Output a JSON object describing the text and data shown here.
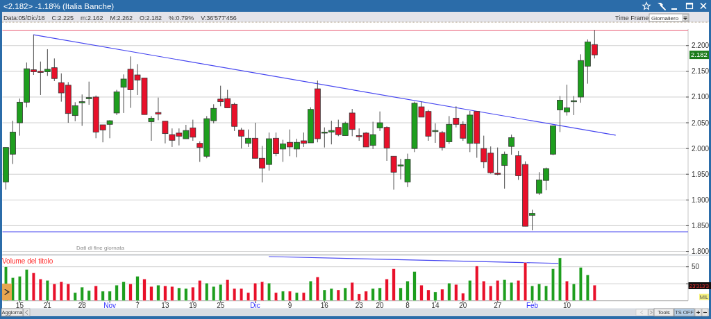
{
  "chart_data": [
    {
      "type": "candlestick",
      "title": "<2.182> -1.18% (Italia Banche)",
      "annotations": [
        "Data:05/Dic/18",
        "C:2.225",
        "m:2.162",
        "M:2.262",
        "O:2.182",
        "%:0.79%",
        "V:36'577'456",
        "Dati di fine giornata",
        "Time Frame",
        "Giornaliero",
        {
          "text": "2.182",
          "y": 2.182
        }
      ],
      "categories": [
        null,
        null,
        null,
        null,
        null,
        null,
        null,
        null,
        null,
        null,
        null,
        null,
        null,
        null,
        null,
        null,
        null,
        null,
        null,
        null,
        null,
        null,
        null,
        null,
        null,
        null,
        null,
        null,
        null,
        null,
        null,
        null,
        null,
        null,
        null,
        null,
        null,
        null,
        null,
        null,
        null,
        null,
        null,
        null,
        null,
        null,
        null,
        null,
        null,
        null,
        null,
        null,
        null,
        null,
        null,
        null,
        null,
        null,
        null,
        null,
        null,
        null,
        null,
        null,
        null,
        null,
        null,
        null,
        null,
        null,
        null,
        null,
        null,
        null,
        null,
        null,
        null,
        null,
        null,
        null,
        null,
        null,
        null,
        null,
        null,
        null,
        null,
        null,
        null,
        null,
        null,
        null,
        null,
        null,
        null,
        null,
        null,
        null,
        null
      ],
      "ohlc": [
        [
          1.935,
          2.002,
          1.92,
          2.002
        ],
        [
          1.989,
          2.054,
          1.97,
          2.032
        ],
        [
          2.05,
          2.097,
          2.025,
          2.09
        ],
        [
          2.09,
          2.167,
          2.08,
          2.155
        ],
        [
          2.153,
          2.221,
          2.143,
          2.149
        ],
        [
          2.15,
          2.169,
          2.104,
          2.148
        ],
        [
          2.149,
          2.193,
          2.141,
          2.154
        ],
        [
          2.157,
          2.175,
          2.131,
          2.136
        ],
        [
          2.128,
          2.146,
          2.091,
          2.108
        ],
        [
          2.123,
          2.129,
          2.05,
          2.068
        ],
        [
          2.064,
          2.09,
          2.053,
          2.083
        ],
        [
          2.09,
          2.105,
          2.044,
          2.091
        ],
        [
          2.097,
          2.13,
          2.085,
          2.099
        ],
        [
          2.1,
          2.103,
          2.02,
          2.032
        ],
        [
          2.046,
          2.046,
          2.012,
          2.036
        ],
        [
          2.047,
          2.055,
          2.02,
          2.054
        ],
        [
          2.069,
          2.114,
          2.065,
          2.11
        ],
        [
          2.119,
          2.144,
          2.069,
          2.135
        ],
        [
          2.154,
          2.179,
          2.079,
          2.114
        ],
        [
          2.143,
          2.164,
          2.104,
          2.133
        ],
        [
          2.137,
          2.137,
          2.066,
          2.066
        ],
        [
          2.052,
          2.063,
          2.015,
          2.059
        ],
        [
          2.07,
          2.099,
          2.055,
          2.067
        ],
        [
          2.053,
          2.053,
          2.01,
          2.029
        ],
        [
          2.027,
          2.039,
          2.003,
          2.016
        ],
        [
          2.03,
          2.039,
          2.006,
          2.024
        ],
        [
          2.019,
          2.046,
          2.019,
          2.035
        ],
        [
          2.04,
          2.056,
          2.015,
          2.022
        ],
        [
          2.01,
          2.014,
          1.974,
          2.002
        ],
        [
          1.985,
          2.063,
          1.981,
          2.058
        ],
        [
          2.054,
          2.086,
          2.049,
          2.078
        ],
        [
          2.096,
          2.122,
          2.082,
          2.091
        ],
        [
          2.097,
          2.114,
          2.079,
          2.079
        ],
        [
          2.086,
          2.089,
          2.034,
          2.043
        ],
        [
          2.036,
          2.04,
          2.0,
          2.024
        ],
        [
          2.01,
          2.037,
          2.003,
          2.02
        ],
        [
          2.02,
          2.05,
          1.981,
          1.981
        ],
        [
          1.981,
          2.005,
          1.934,
          1.962
        ],
        [
          1.969,
          2.031,
          1.957,
          2.019
        ],
        [
          2.02,
          2.031,
          1.985,
          1.99
        ],
        [
          1.999,
          2.017,
          1.974,
          2.009
        ],
        [
          2.012,
          2.037,
          1.985,
          2.003
        ],
        [
          1.999,
          2.019,
          1.983,
          2.012
        ],
        [
          2.015,
          2.031,
          2.003,
          2.01
        ],
        [
          2.011,
          2.08,
          2.011,
          2.076
        ],
        [
          2.116,
          2.132,
          2.012,
          2.019
        ],
        [
          2.03,
          2.041,
          2.002,
          2.032
        ],
        [
          2.032,
          2.054,
          2.008,
          2.035
        ],
        [
          2.041,
          2.056,
          2.024,
          2.027
        ],
        [
          2.025,
          2.052,
          2.025,
          2.049
        ],
        [
          2.069,
          2.077,
          2.024,
          2.037
        ],
        [
          2.025,
          2.039,
          2.015,
          2.024
        ],
        [
          2.03,
          2.032,
          2.003,
          2.003
        ],
        [
          2.006,
          2.052,
          1.999,
          2.027
        ],
        [
          2.04,
          2.072,
          2.034,
          2.05
        ],
        [
          2.041,
          2.043,
          1.976,
          2.001
        ],
        [
          1.985,
          1.985,
          1.92,
          1.954
        ],
        [
          1.967,
          1.98,
          1.94,
          1.968
        ],
        [
          1.935,
          1.99,
          1.925,
          1.979
        ],
        [
          2.0,
          2.091,
          1.993,
          2.088
        ],
        [
          2.081,
          2.091,
          2.061,
          2.061
        ],
        [
          2.072,
          2.075,
          2.015,
          2.024
        ],
        [
          2.033,
          2.049,
          2.011,
          2.035
        ],
        [
          2.031,
          2.034,
          1.996,
          2.002
        ],
        [
          2.013,
          2.063,
          2.009,
          2.047
        ],
        [
          2.059,
          2.082,
          2.041,
          2.047
        ],
        [
          2.047,
          2.053,
          2.015,
          2.02
        ],
        [
          2.01,
          2.073,
          1.993,
          2.065
        ],
        [
          2.072,
          2.072,
          1.982,
          2.01
        ],
        [
          2.0,
          2.025,
          1.962,
          1.974
        ],
        [
          1.991,
          2.004,
          1.951,
          1.953
        ],
        [
          1.952,
          2.002,
          1.948,
          1.95
        ],
        [
          1.967,
          1.994,
          1.922,
          1.989
        ],
        [
          2.004,
          2.027,
          1.988,
          2.021
        ],
        [
          1.986,
          1.995,
          1.939,
          1.947
        ],
        [
          1.969,
          1.975,
          1.849,
          1.849
        ],
        [
          1.87,
          1.881,
          1.841,
          1.874
        ],
        [
          1.913,
          1.954,
          1.91,
          1.939
        ],
        [
          1.938,
          1.963,
          1.919,
          1.961
        ],
        [
          1.989,
          2.044,
          1.987,
          2.044
        ],
        [
          2.075,
          2.102,
          2.032,
          2.094
        ],
        [
          2.071,
          2.124,
          2.064,
          2.079
        ],
        [
          2.091,
          2.102,
          2.065,
          2.093
        ],
        [
          2.1,
          2.183,
          2.089,
          2.171
        ],
        [
          2.16,
          2.212,
          2.126,
          2.207
        ],
        [
          2.202,
          2.23,
          2.175,
          2.182
        ],
        null,
        null,
        null,
        null,
        null,
        null,
        null,
        null,
        null,
        null,
        null,
        null,
        null
      ],
      "colors": [
        "#1e9e1e",
        "#1e9e1e",
        "#1e9e1e",
        "#1e9e1e",
        "#e8102a",
        "#e8102a",
        "#1e9e1e",
        "#e8102a",
        "#e8102a",
        "#e8102a",
        "#1e9e1e",
        "#1e9e1e",
        "#1e9e1e",
        "#e8102a",
        "#e8102a",
        "#1e9e1e",
        "#1e9e1e",
        "#1e9e1e",
        "#e8102a",
        "#e8102a",
        "#e8102a",
        "#1e9e1e",
        "#e8102a",
        "#e8102a",
        "#e8102a",
        "#e8102a",
        "#1e9e1e",
        "#e8102a",
        "#e8102a",
        "#1e9e1e",
        "#1e9e1e",
        "#e8102a",
        "#e8102a",
        "#e8102a",
        "#e8102a",
        "#1e9e1e",
        "#e8102a",
        "#e8102a",
        "#1e9e1e",
        "#e8102a",
        "#1e9e1e",
        "#e8102a",
        "#1e9e1e",
        "#e8102a",
        "#1e9e1e",
        "#e8102a",
        "#1e9e1e",
        "#1e9e1e",
        "#e8102a",
        "#1e9e1e",
        "#e8102a",
        "#e8102a",
        "#e8102a",
        "#1e9e1e",
        "#1e9e1e",
        "#e8102a",
        "#e8102a",
        "#1e9e1e",
        "#1e9e1e",
        "#1e9e1e",
        "#e8102a",
        "#e8102a",
        "#1e9e1e",
        "#e8102a",
        "#1e9e1e",
        "#e8102a",
        "#e8102a",
        "#1e9e1e",
        "#e8102a",
        "#e8102a",
        "#e8102a",
        "#e8102a",
        "#1e9e1e",
        "#1e9e1e",
        "#e8102a",
        "#e8102a",
        "#1e9e1e",
        "#1e9e1e",
        "#1e9e1e",
        "#1e9e1e",
        "#1e9e1e",
        "#1e9e1e",
        "#1e9e1e",
        "#1e9e1e",
        "#1e9e1e",
        "#e8102a",
        null,
        null,
        null,
        null,
        null,
        null,
        null,
        null,
        null,
        null,
        null,
        null,
        null
      ],
      "series": [
        {
          "type": "line",
          "color": "#4646f0",
          "values": [
            null,
            null,
            null,
            null,
            2.221,
            null,
            null,
            null,
            null,
            null,
            null,
            null,
            null,
            null,
            null,
            null,
            null,
            null,
            null,
            null,
            null,
            null,
            null,
            null,
            null,
            null,
            null,
            null,
            null,
            null,
            null,
            null,
            null,
            null,
            null,
            null,
            null,
            null,
            null,
            null,
            null,
            null,
            null,
            null,
            null,
            null,
            null,
            null,
            null,
            null,
            null,
            null,
            null,
            null,
            null,
            null,
            null,
            null,
            null,
            null,
            null,
            null,
            null,
            null,
            null,
            null,
            null,
            null,
            null,
            null,
            null,
            null,
            null,
            null,
            null,
            null,
            null,
            null,
            null,
            null,
            null,
            null,
            null,
            null,
            null,
            null,
            null,
            null,
            2.026,
            null,
            null,
            null,
            null,
            null,
            null,
            null,
            null,
            null,
            null
          ]
        }
      ],
      "ylim": [
        1.794,
        2.232
      ],
      "yticks": [
        {
          "value": 1.8,
          "label": "1.800"
        },
        {
          "value": 1.85,
          "label": "1.850"
        },
        {
          "value": 1.9,
          "label": "1.900"
        },
        {
          "value": 1.95,
          "label": "1.950"
        },
        {
          "value": 2.0,
          "label": "2.000"
        },
        {
          "value": 2.05,
          "label": "2.050"
        },
        {
          "value": 2.1,
          "label": "2.100"
        },
        {
          "value": 2.15,
          "label": "2.150"
        },
        {
          "value": 2.2,
          "label": "2.200"
        }
      ],
      "grid": "y",
      "tick_labels": "y",
      "ref_lines": [
        {
          "axis": "y",
          "value": 2.23,
          "color": "#e85a72"
        },
        {
          "axis": "y",
          "value": 1.838,
          "color": "#4040f0"
        }
      ]
    },
    {
      "type": "bar",
      "title": "Volume del titolo",
      "ylabel": "MIL",
      "annotations": [
        "Aggiorna",
        "Tools",
        "TS OFF",
        "23'313'3"
      ],
      "categories": [
        null,
        null,
        "15",
        null,
        null,
        null,
        "21",
        null,
        null,
        null,
        null,
        "28",
        null,
        null,
        null,
        "Nov",
        null,
        null,
        null,
        "7",
        null,
        null,
        null,
        "13",
        null,
        null,
        null,
        "19",
        null,
        null,
        null,
        "25",
        null,
        null,
        null,
        null,
        "Dic",
        null,
        null,
        null,
        null,
        "9",
        null,
        null,
        null,
        null,
        "16",
        null,
        null,
        null,
        null,
        "23",
        null,
        null,
        "20",
        null,
        null,
        null,
        "8",
        null,
        null,
        null,
        "14",
        null,
        null,
        null,
        "20",
        null,
        null,
        null,
        null,
        "27",
        null,
        null,
        null,
        null,
        "Feb",
        null,
        null,
        null,
        null,
        "10",
        null,
        null,
        null,
        null,
        null,
        null,
        null,
        null,
        null,
        null,
        null,
        null,
        null,
        null,
        null,
        null,
        null
      ],
      "values": [
        50,
        34,
        36,
        46,
        41,
        32,
        30,
        25,
        28,
        25,
        12,
        20,
        15,
        22,
        14,
        14,
        23,
        28,
        25,
        36,
        32,
        21,
        23,
        22,
        21,
        19,
        18,
        20,
        30,
        26,
        21,
        24,
        31,
        18,
        18,
        12,
        26,
        28,
        26,
        12,
        14,
        14,
        12,
        12,
        29,
        35,
        16,
        18,
        16,
        19,
        27,
        10,
        14,
        18,
        19,
        32,
        47,
        19,
        29,
        43,
        23,
        16,
        13,
        17,
        26,
        24,
        11,
        30,
        51,
        29,
        22,
        30,
        31,
        27,
        30,
        56,
        22,
        25,
        22,
        47,
        63,
        29,
        25,
        49,
        38,
        23,
        null,
        null,
        null,
        null,
        null,
        null,
        null,
        null,
        null,
        null,
        null,
        null,
        null
      ],
      "colors": [
        "#1e9e1e",
        "#1e9e1e",
        "#1e9e1e",
        "#1e9e1e",
        "#e8102a",
        "#e8102a",
        "#1e9e1e",
        "#e8102a",
        "#e8102a",
        "#e8102a",
        "#1e9e1e",
        "#1e9e1e",
        "#1e9e1e",
        "#e8102a",
        "#1e9e1e",
        "#1e9e1e",
        "#1e9e1e",
        "#1e9e1e",
        "#e8102a",
        "#1e9e1e",
        "#e8102a",
        "#e8102a",
        "#1e9e1e",
        "#e8102a",
        "#e8102a",
        "#1e9e1e",
        "#1e9e1e",
        "#e8102a",
        "#e8102a",
        "#1e9e1e",
        "#1e9e1e",
        "#1e9e1e",
        "#e8102a",
        "#e8102a",
        "#e8102a",
        "#e8102a",
        "#e8102a",
        "#e8102a",
        "#1e9e1e",
        "#e8102a",
        "#1e9e1e",
        "#e8102a",
        "#1e9e1e",
        "#e8102a",
        "#1e9e1e",
        "#e8102a",
        "#1e9e1e",
        "#1e9e1e",
        "#e8102a",
        "#1e9e1e",
        "#e8102a",
        "#e8102a",
        "#e8102a",
        "#1e9e1e",
        "#1e9e1e",
        "#e8102a",
        "#e8102a",
        "#1e9e1e",
        "#1e9e1e",
        "#1e9e1e",
        "#e8102a",
        "#e8102a",
        "#1e9e1e",
        "#e8102a",
        "#1e9e1e",
        "#e8102a",
        "#e8102a",
        "#1e9e1e",
        "#e8102a",
        "#e8102a",
        "#e8102a",
        "#e8102a",
        "#1e9e1e",
        "#1e9e1e",
        "#e8102a",
        "#e8102a",
        "#1e9e1e",
        "#1e9e1e",
        "#1e9e1e",
        "#1e9e1e",
        "#1e9e1e",
        "#e8102a",
        "#1e9e1e",
        "#1e9e1e",
        "#1e9e1e",
        "#e8102a",
        null,
        null,
        null,
        null,
        null,
        null,
        null,
        null,
        null,
        null,
        null,
        null,
        null
      ],
      "series": [
        {
          "type": "line",
          "color": "#4646f0",
          "values": [
            null,
            null,
            null,
            null,
            null,
            null,
            null,
            null,
            null,
            null,
            null,
            null,
            null,
            null,
            null,
            null,
            null,
            null,
            null,
            null,
            null,
            null,
            null,
            null,
            null,
            null,
            null,
            null,
            null,
            null,
            null,
            null,
            null,
            null,
            null,
            null,
            null,
            null,
            65,
            null,
            null,
            null,
            null,
            null,
            null,
            null,
            null,
            null,
            null,
            null,
            null,
            null,
            null,
            null,
            null,
            null,
            null,
            null,
            null,
            null,
            null,
            null,
            null,
            null,
            null,
            null,
            null,
            null,
            null,
            null,
            null,
            null,
            null,
            null,
            null,
            null,
            null,
            null,
            null,
            null,
            55,
            null,
            null,
            null,
            null,
            null,
            null,
            null,
            null,
            null,
            null,
            null,
            null,
            null,
            null,
            null,
            null,
            null,
            null
          ]
        }
      ],
      "ylim": [
        0,
        66
      ],
      "yticks": [
        {
          "value": 25,
          "label": null
        },
        50
      ],
      "grid": "y"
    }
  ]
}
